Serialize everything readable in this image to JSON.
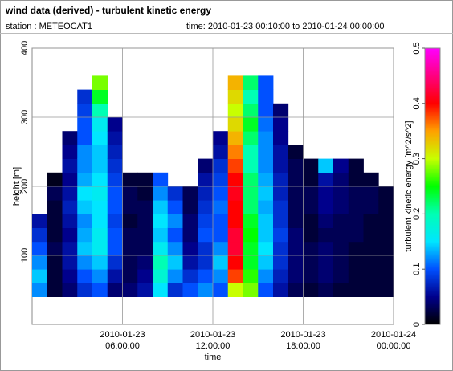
{
  "chart_data": {
    "type": "heatmap",
    "title": "wind data (derived) - turbulent kinetic energy",
    "subtitle_left": "station : METEOCAT1",
    "subtitle_right": "time: 2010-01-23 00:10:00 to 2010-01-24 00:00:00",
    "xlabel": "time",
    "ylabel": "height [m]",
    "colorbar_label": "turbulent kinetic energy [m^2/s^2]",
    "xlim": [
      "2010-01-23 00:00:00",
      "2010-01-24 00:00:00"
    ],
    "xticks": [
      "2010-01-23 06:00:00",
      "2010-01-23 12:00:00",
      "2010-01-23 18:00:00",
      "2010-01-24 00:00:00"
    ],
    "ylim": [
      0,
      400
    ],
    "yticks": [
      100,
      200,
      300,
      400
    ],
    "zlim": [
      0,
      0.5
    ],
    "zticks": [
      0,
      0.1,
      0.2,
      0.3,
      0.4,
      0.5
    ],
    "colorscale": [
      "#000000",
      "#00008c",
      "#0050ff",
      "#00e6ff",
      "#00ffb4",
      "#00ff00",
      "#c8ff00",
      "#ffa000",
      "#ff0000",
      "#ff0080",
      "#ff00ff"
    ],
    "grid": true,
    "x_bins": [
      "2010-01-23 00:00:00",
      "2010-01-23 01:00:00",
      "2010-01-23 02:00:00",
      "2010-01-23 03:00:00",
      "2010-01-23 04:00:00",
      "2010-01-23 05:00:00",
      "2010-01-23 06:00:00",
      "2010-01-23 07:00:00",
      "2010-01-23 08:00:00",
      "2010-01-23 09:00:00",
      "2010-01-23 10:00:00",
      "2010-01-23 11:00:00",
      "2010-01-23 12:00:00",
      "2010-01-23 13:00:00",
      "2010-01-23 14:00:00",
      "2010-01-23 15:00:00",
      "2010-01-23 16:00:00",
      "2010-01-23 17:00:00",
      "2010-01-23 18:00:00",
      "2010-01-23 19:00:00",
      "2010-01-23 20:00:00",
      "2010-01-23 21:00:00",
      "2010-01-23 22:00:00",
      "2010-01-23 23:00:00",
      "2010-01-24 00:00:00"
    ],
    "y_bins": [
      40,
      60,
      80,
      100,
      120,
      140,
      160,
      180,
      200,
      220,
      240,
      260,
      280,
      300,
      320,
      340,
      360
    ],
    "z": [
      [
        0.12,
        0.14,
        0.12,
        0.1,
        0.08,
        0.06,
        null,
        null,
        null,
        null,
        null,
        null,
        null,
        null,
        null,
        null
      ],
      [
        0.02,
        0.02,
        0.02,
        0.03,
        0.02,
        0.02,
        0.02,
        0.03,
        0.01,
        null,
        null,
        null,
        null,
        null,
        null,
        null
      ],
      [
        0.04,
        0.05,
        0.06,
        0.06,
        0.05,
        0.06,
        0.07,
        0.06,
        0.05,
        0.06,
        0.05,
        0.04,
        null,
        null,
        null,
        null
      ],
      [
        0.08,
        0.1,
        0.12,
        0.14,
        0.13,
        0.12,
        0.14,
        0.15,
        0.13,
        0.12,
        0.12,
        0.1,
        0.1,
        0.09,
        0.08,
        null
      ],
      [
        0.1,
        0.12,
        0.14,
        0.16,
        0.16,
        0.15,
        0.15,
        0.16,
        0.15,
        0.14,
        0.14,
        0.15,
        0.16,
        0.2,
        0.24,
        0.28
      ],
      [
        0.04,
        0.06,
        0.08,
        0.1,
        0.1,
        0.09,
        0.1,
        0.1,
        0.09,
        0.08,
        0.07,
        0.06,
        0.05,
        null,
        null,
        null
      ],
      [
        0.04,
        0.03,
        0.03,
        0.03,
        0.03,
        0.02,
        0.03,
        0.03,
        0.02,
        null,
        null,
        null,
        null,
        null,
        null,
        null
      ],
      [
        0.06,
        0.05,
        0.04,
        0.03,
        0.03,
        0.03,
        0.03,
        0.02,
        0.02,
        null,
        null,
        null,
        null,
        null,
        null,
        null
      ],
      [
        0.15,
        0.18,
        0.2,
        0.16,
        0.14,
        0.15,
        0.14,
        0.12,
        0.1,
        null,
        null,
        null,
        null,
        null,
        null,
        null
      ],
      [
        0.08,
        0.12,
        0.14,
        0.12,
        0.1,
        0.12,
        0.1,
        0.08,
        null,
        null,
        null,
        null,
        null,
        null,
        null,
        null
      ],
      [
        0.1,
        0.08,
        0.06,
        0.05,
        0.04,
        0.04,
        0.03,
        0.03,
        null,
        null,
        null,
        null,
        null,
        null,
        null,
        null
      ],
      [
        0.12,
        0.1,
        0.08,
        0.08,
        0.1,
        0.09,
        0.08,
        0.07,
        0.06,
        0.04,
        null,
        null,
        null,
        null,
        null,
        null
      ],
      [
        0.1,
        0.12,
        0.14,
        0.12,
        0.1,
        0.1,
        0.11,
        0.1,
        0.09,
        0.08,
        0.06,
        0.05,
        null,
        null,
        null,
        null
      ],
      [
        0.3,
        0.38,
        0.4,
        0.42,
        0.42,
        0.4,
        0.4,
        0.41,
        0.4,
        0.38,
        0.36,
        0.34,
        0.32,
        0.3,
        0.32,
        0.34
      ],
      [
        0.28,
        0.26,
        0.24,
        0.24,
        0.25,
        0.24,
        0.22,
        0.22,
        0.22,
        0.2,
        0.2,
        0.22,
        0.24,
        0.22,
        0.2,
        0.22
      ],
      [
        0.1,
        0.12,
        0.14,
        0.15,
        0.14,
        0.14,
        0.13,
        0.14,
        0.13,
        0.12,
        0.12,
        0.12,
        0.11,
        0.1,
        0.1,
        0.1
      ],
      [
        0.06,
        0.07,
        0.08,
        0.08,
        0.09,
        0.08,
        0.08,
        0.07,
        0.07,
        0.06,
        0.06,
        0.05,
        0.05,
        0.04,
        null,
        null
      ],
      [
        0.03,
        0.04,
        0.04,
        0.04,
        0.04,
        0.03,
        0.03,
        0.03,
        0.03,
        0.03,
        0.02,
        null,
        null,
        null,
        null,
        null
      ],
      [
        0.02,
        0.03,
        0.03,
        0.03,
        0.02,
        0.02,
        0.03,
        0.03,
        0.02,
        0.02,
        null,
        null,
        null,
        null,
        null,
        null
      ],
      [
        0.03,
        0.04,
        0.04,
        0.04,
        0.03,
        0.04,
        0.05,
        0.05,
        0.06,
        0.14,
        null,
        null,
        null,
        null,
        null,
        null
      ],
      [
        0.02,
        0.03,
        0.03,
        0.03,
        0.03,
        0.03,
        0.04,
        0.04,
        0.04,
        0.05,
        null,
        null,
        null,
        null,
        null,
        null
      ],
      [
        0.02,
        0.02,
        0.02,
        0.02,
        0.03,
        0.03,
        0.03,
        0.03,
        0.02,
        0.02,
        null,
        null,
        null,
        null,
        null,
        null
      ],
      [
        0.02,
        0.02,
        0.02,
        0.02,
        0.02,
        0.02,
        0.03,
        0.03,
        0.02,
        null,
        null,
        null,
        null,
        null,
        null,
        null
      ],
      [
        0.02,
        0.02,
        0.02,
        0.02,
        0.02,
        0.02,
        0.02,
        0.02,
        null,
        null,
        null,
        null,
        null,
        null,
        null,
        null
      ]
    ]
  }
}
